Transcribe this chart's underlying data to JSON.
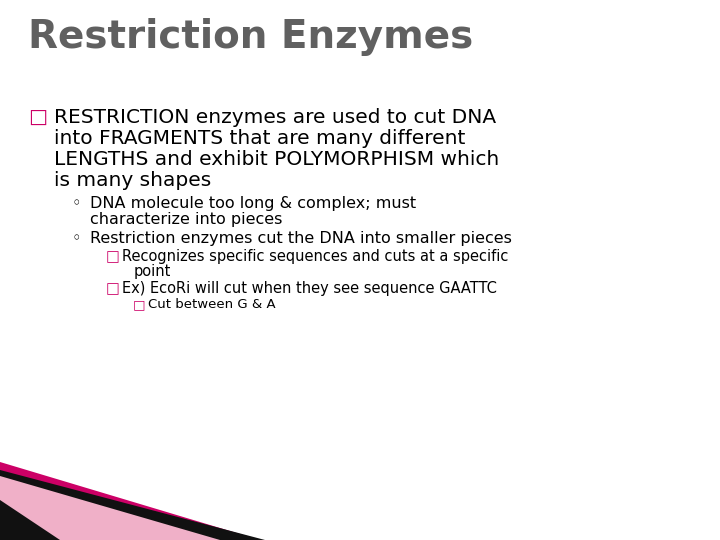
{
  "title": "Restriction Enzymes",
  "title_color": "#606060",
  "title_fontsize": 28,
  "background_color": "#ffffff",
  "bullet1_marker": "□",
  "bullet1_marker_color": "#cc0066",
  "bullet1_text_line1": "RESTRICTION enzymes are used to cut DNA",
  "bullet1_text_line2": "into FRAGMENTS that are many different",
  "bullet1_text_line3": "LENGTHS and exhibit POLYMORPHISM which",
  "bullet1_text_line4": "is many shapes",
  "bullet1_fontsize": 14.5,
  "sub_bullet_marker": "◦",
  "sub_bullet_marker_color": "#000000",
  "sub1_line1": "DNA molecule too long & complex; must",
  "sub1_line2": "characterize into pieces",
  "sub2_line1": "Restriction enzymes cut the DNA into smaller pieces",
  "sub_fontsize": 11.5,
  "subsub_marker": "□",
  "subsub_marker_color": "#cc0066",
  "subsub1_line1": "Recognizes specific sequences and cuts at a specific",
  "subsub1_line2": "point",
  "subsub2_line1": "Ex) EcoRi will cut when they see sequence GAATTC",
  "subsubsub_marker": "□",
  "subsubsub_marker_color": "#cc0066",
  "subsubsub1_line1": "Cut between G & A",
  "subsub_fontsize": 10.5,
  "text_color": "#000000",
  "deco_magenta": "#cc0066",
  "deco_black": "#111111",
  "deco_lightpink": "#f0b0c8"
}
